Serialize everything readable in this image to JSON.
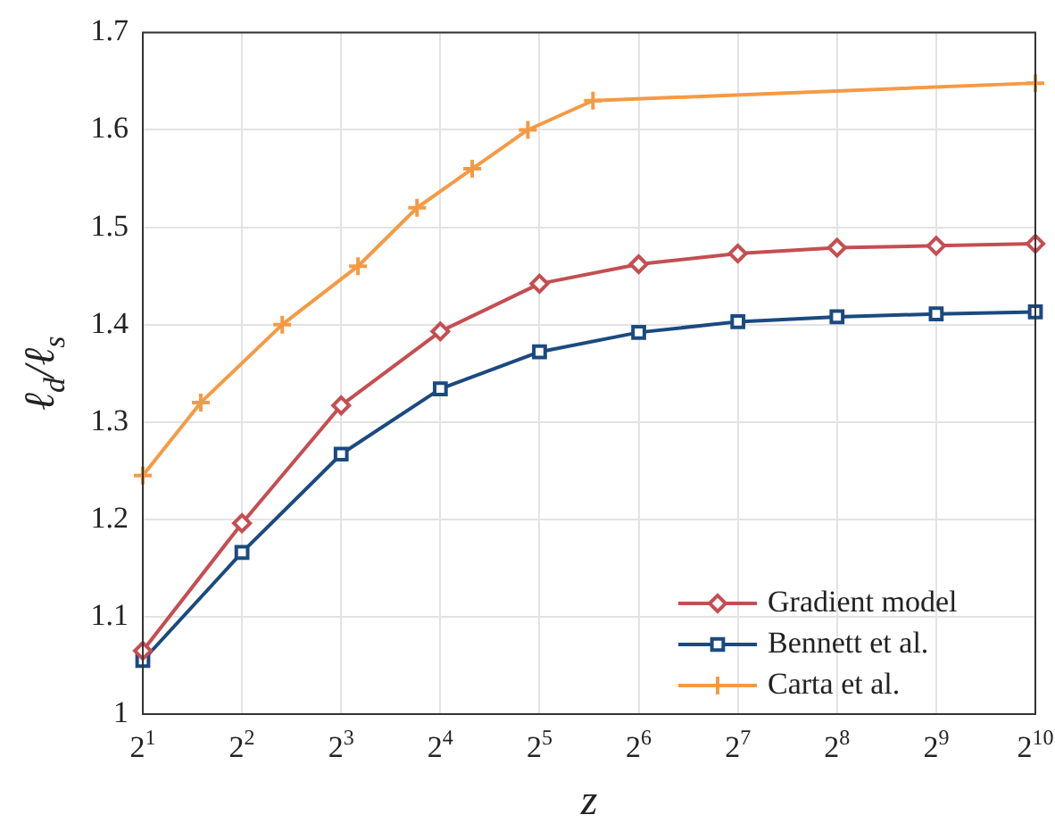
{
  "chart_data": {
    "type": "line",
    "xlabel": "z",
    "ylabel": "ℓ$_{d}$/ℓ$_{s}$",
    "xlim": [
      2,
      1024
    ],
    "ylim": [
      1,
      1.7
    ],
    "log": "x",
    "xticks": [
      {
        "value": 2,
        "label": "2$^{1}$"
      },
      {
        "value": 4,
        "label": "2$^{2}$"
      },
      {
        "value": 8,
        "label": "2$^{3}$"
      },
      {
        "value": 16,
        "label": "2$^{4}$"
      },
      {
        "value": 32,
        "label": "2$^{5}$"
      },
      {
        "value": 64,
        "label": "2$^{6}$"
      },
      {
        "value": 128,
        "label": "2$^{7}$"
      },
      {
        "value": 256,
        "label": "2$^{8}$"
      },
      {
        "value": 512,
        "label": "2$^{9}$"
      },
      {
        "value": 1024,
        "label": "2$^{10}$"
      }
    ],
    "yticks": [
      1,
      1.1,
      1.2,
      1.3,
      1.4,
      1.5,
      1.6,
      1.7
    ],
    "grid": true,
    "legend": "bottom right",
    "series": [
      {
        "name": "Gradient model",
        "color": "#c44e52",
        "marker": "diamond",
        "x": [
          2,
          4,
          8,
          16,
          32,
          64,
          128,
          256,
          512,
          1024
        ],
        "values": [
          1.065,
          1.196,
          1.317,
          1.393,
          1.442,
          1.462,
          1.473,
          1.479,
          1.481,
          1.483
        ]
      },
      {
        "name": "Bennett et al.",
        "color": "#1a4a80",
        "marker": "square",
        "x": [
          2,
          4,
          8,
          16,
          32,
          64,
          128,
          256,
          512,
          1024
        ],
        "values": [
          1.055,
          1.166,
          1.267,
          1.334,
          1.372,
          1.392,
          1.403,
          1.408,
          1.411,
          1.413
        ]
      },
      {
        "name": "Carta et al.",
        "color": "#f59a44",
        "marker": "cross",
        "x": [
          2,
          3,
          5.3,
          9,
          13.6,
          20,
          29.5,
          46.5,
          1024
        ],
        "values": [
          1.245,
          1.32,
          1.4,
          1.46,
          1.52,
          1.56,
          1.6,
          1.63,
          1.648
        ]
      }
    ]
  }
}
